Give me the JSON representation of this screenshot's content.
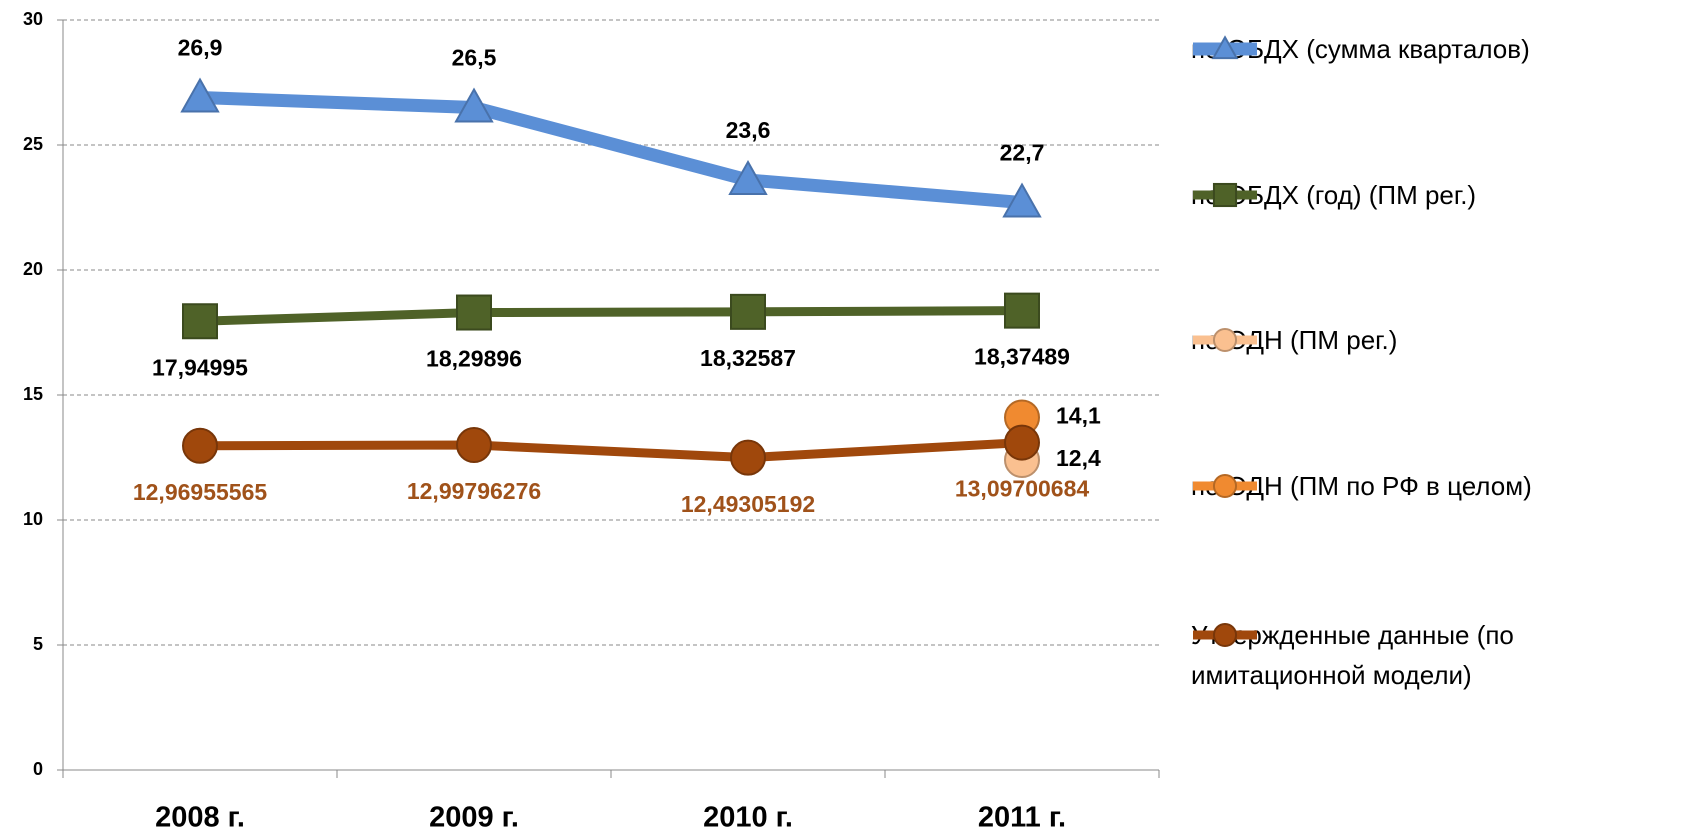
{
  "chart_data": {
    "type": "line",
    "categories": [
      "2008 г.",
      "2009 г.",
      "2010 г.",
      "2011 г."
    ],
    "ylim": [
      0,
      30
    ],
    "yticks": [
      0,
      5,
      10,
      15,
      20,
      25,
      30
    ],
    "grid": true,
    "legend": "right",
    "series": [
      {
        "name": "по ОБДХ (сумма кварталов)",
        "color": "#5b8fd6",
        "marker": "triangle",
        "values": [
          26.9,
          26.5,
          23.6,
          22.7
        ],
        "value_labels": [
          "26,9",
          "26,5",
          "23,6",
          "22,7"
        ]
      },
      {
        "name": "по ОБДХ (год) (ПМ рег.)",
        "color": "#4f6228",
        "marker": "square",
        "values": [
          17.94995,
          18.29896,
          18.32587,
          18.37489
        ],
        "value_labels": [
          "17,94995",
          "18,29896",
          "18,32587",
          "18,37489"
        ]
      },
      {
        "name": "по ОДН (ПМ рег.)",
        "color": "#fac090",
        "marker": "circle",
        "values": [
          null,
          null,
          null,
          12.4
        ],
        "value_labels": [
          null,
          null,
          null,
          "12,4"
        ]
      },
      {
        "name": "по ОДН (ПМ по РФ в целом)",
        "color": "#f08a30",
        "marker": "circle",
        "values": [
          null,
          null,
          null,
          14.1
        ],
        "value_labels": [
          null,
          null,
          null,
          "14,1"
        ]
      },
      {
        "name": "Утвержденные данные (по имитационной модели)",
        "color": "#a0480c",
        "marker": "circle",
        "values": [
          12.96955565,
          12.99796276,
          12.49305192,
          13.09700684
        ],
        "value_labels": [
          "12,96955565",
          "12,99796276",
          "12,49305192",
          "13,09700684"
        ]
      }
    ]
  }
}
